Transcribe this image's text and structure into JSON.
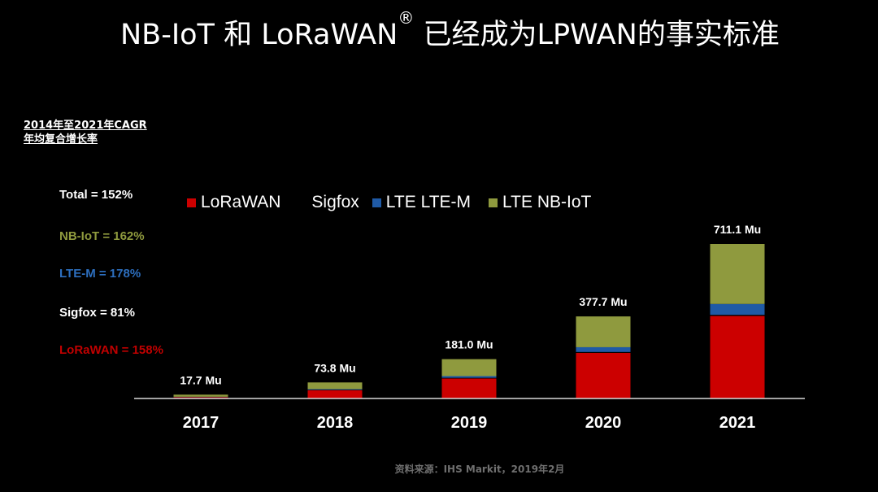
{
  "title": {
    "main": "NB-IoT 和 LoRaWAN",
    "registered": "®",
    "rest": " 已经成为LPWAN的事实标准"
  },
  "cagr": {
    "heading_line1": "2014年至2021年CAGR",
    "heading_line2": "年均复合增长率",
    "items": [
      {
        "label": "Total = 152%",
        "color": "#ffffff"
      },
      {
        "label": "NB-IoT = 162%",
        "color": "#8f9a3e"
      },
      {
        "label": "LTE-M = 178%",
        "color": "#2d6fbf"
      },
      {
        "label": "Sigfox = 81%",
        "color": "#ffffff"
      },
      {
        "label": "LoRaWAN = 158%",
        "color": "#c00000"
      }
    ]
  },
  "source": "资料来源：IHS Markit，2019年2月",
  "chart_data": {
    "type": "bar",
    "stacked": true,
    "unit": "Mu",
    "categories": [
      "2017",
      "2018",
      "2019",
      "2020",
      "2021"
    ],
    "totals": [
      "17.7 Mu",
      "73.8 Mu",
      "181.0 Mu",
      "377.7 Mu",
      "711.1 Mu"
    ],
    "total_values": [
      17.7,
      73.8,
      181.0,
      377.7,
      711.1
    ],
    "series": [
      {
        "name": "LoRaWAN",
        "color": "#cc0000",
        "values": [
          6,
          38,
          92,
          210,
          380
        ]
      },
      {
        "name": "Sigfox",
        "color": "#000000",
        "values": [
          1,
          2,
          3,
          4,
          5
        ]
      },
      {
        "name": "LTE LTE-M",
        "color": "#1f5aa6",
        "values": [
          1,
          3,
          8,
          22,
          50
        ]
      },
      {
        "name": "LTE NB-IoT",
        "color": "#8f9a3e",
        "values": [
          9.7,
          30.8,
          78,
          141.7,
          276.1
        ]
      }
    ],
    "legend": [
      {
        "name": "LoRaWAN",
        "color": "#cc0000",
        "show_swatch": true
      },
      {
        "name": "Sigfox",
        "color": "#000000",
        "show_swatch": false
      },
      {
        "name": "LTE LTE-M",
        "color": "#1f5aa6",
        "show_swatch": true
      },
      {
        "name": "LTE NB-IoT",
        "color": "#8f9a3e",
        "show_swatch": true
      }
    ],
    "legend_position": "top",
    "grid": false
  }
}
